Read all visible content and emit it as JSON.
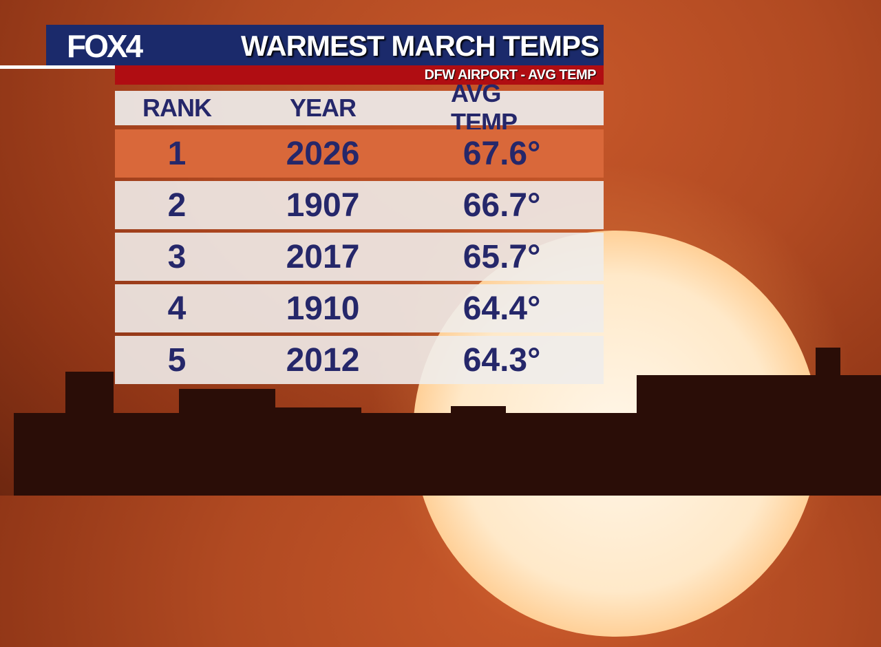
{
  "logo": "FOX4",
  "header": {
    "title": "WARMEST MARCH TEMPS",
    "subtitle": "DFW AIRPORT - AVG TEMP"
  },
  "colors": {
    "header": "#1b2a6b",
    "subband": "#b00d12",
    "highlight": "#d9683a",
    "text": "#25276a"
  },
  "chart_data": {
    "type": "table",
    "title": "WARMEST MARCH TEMPS",
    "subtitle": "DFW AIRPORT - AVG TEMP",
    "columns": [
      "RANK",
      "YEAR",
      "AVG TEMP"
    ],
    "rows": [
      [
        "1",
        "2026",
        "67.6°"
      ],
      [
        "2",
        "1907",
        "66.7°"
      ],
      [
        "3",
        "2017",
        "65.7°"
      ],
      [
        "4",
        "1910",
        "64.4°"
      ],
      [
        "5",
        "2012",
        "64.3°"
      ]
    ],
    "highlighted_row": 1
  }
}
